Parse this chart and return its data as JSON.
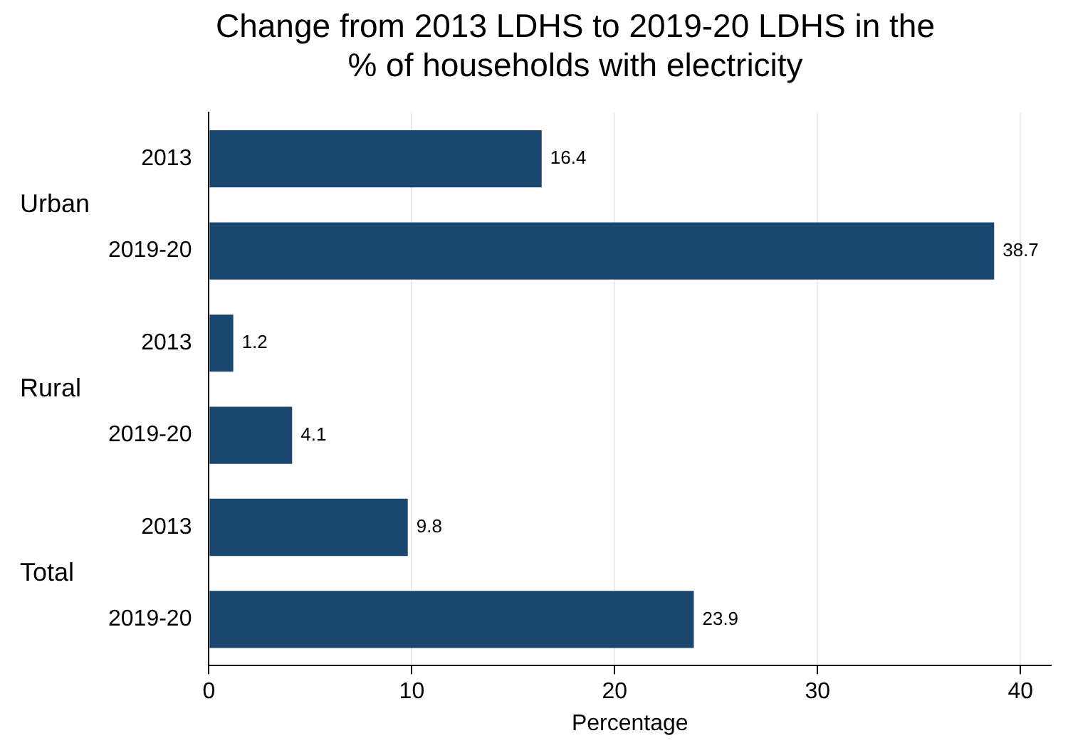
{
  "chart_data": {
    "type": "bar",
    "orientation": "horizontal",
    "title": "Change from 2013 LDHS to 2019-20 LDHS in the\n% of households with electricity",
    "xlabel": "Percentage",
    "categories": [
      "2013",
      "2019-20",
      "2013",
      "2019-20",
      "2013",
      "2019-20"
    ],
    "values": [
      16.4,
      38.7,
      1.2,
      4.1,
      9.8,
      23.9
    ],
    "color": "#1a476f",
    "xlim": [
      0,
      41.5
    ],
    "xticks": [
      0,
      10,
      20,
      30,
      40
    ],
    "grid": "x",
    "data_labels": true,
    "legend": false,
    "annotations": [
      "Urban",
      "Rural",
      "Total"
    ]
  }
}
